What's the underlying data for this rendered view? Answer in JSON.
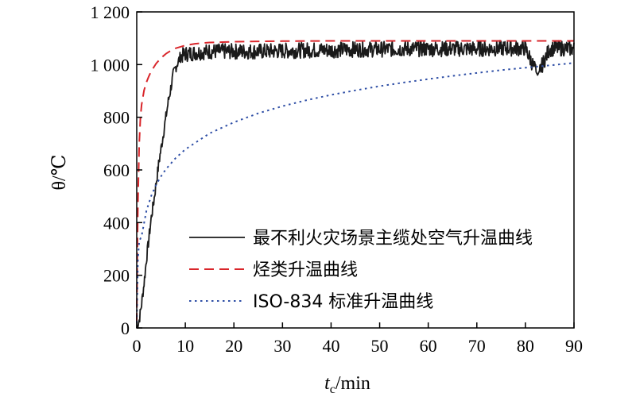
{
  "chart_data": {
    "type": "line",
    "xlabel": "t_c/min",
    "xlabel_main": "t",
    "xlabel_sub": "c",
    "xlabel_unit": "/min",
    "ylabel": "θ/℃",
    "xlim": [
      0,
      90
    ],
    "ylim": [
      0,
      1200
    ],
    "xticks": [
      0,
      10,
      20,
      30,
      40,
      50,
      60,
      70,
      80,
      90
    ],
    "yticks": [
      0,
      200,
      400,
      600,
      800,
      1000,
      1200
    ],
    "xtick_labels": [
      "0",
      "10",
      "20",
      "30",
      "40",
      "50",
      "60",
      "70",
      "80",
      "90"
    ],
    "ytick_labels": [
      "0",
      "200",
      "400",
      "600",
      "800",
      "1 000",
      "1 200"
    ],
    "grid": false,
    "legend_position": "lower-right",
    "series": [
      {
        "name": "最不利火灾场景主缆处空气升温曲线",
        "color": "#1a1a1a",
        "style": "solid",
        "x": [
          0,
          0.5,
          1,
          1.5,
          2,
          2.5,
          3,
          3.5,
          4,
          4.5,
          5,
          5.5,
          6,
          6.5,
          7,
          7.5,
          8,
          8.5,
          9,
          10,
          12,
          15,
          20,
          25,
          30,
          35,
          40,
          45,
          50,
          55,
          60,
          65,
          70,
          75,
          80,
          82.5,
          85,
          88,
          90
        ],
        "y": [
          0,
          30,
          90,
          170,
          260,
          340,
          420,
          480,
          550,
          620,
          680,
          740,
          800,
          860,
          910,
          960,
          990,
          1010,
          1030,
          1040,
          1045,
          1050,
          1050,
          1050,
          1052,
          1055,
          1055,
          1058,
          1058,
          1060,
          1060,
          1060,
          1060,
          1062,
          1062,
          960,
          1060,
          1062,
          1060
        ]
      },
      {
        "name": "烃类升温曲线",
        "color": "#d9262b",
        "style": "dashed",
        "x": [
          0,
          0.1,
          0.25,
          0.5,
          0.75,
          1,
          1.5,
          2,
          2.5,
          3,
          4,
          5,
          6,
          7,
          8,
          10,
          12,
          15,
          20,
          25,
          30,
          40,
          50,
          60,
          70,
          80,
          90
        ],
        "y": [
          20,
          251,
          474,
          698,
          796,
          847,
          902,
          933,
          956,
          975,
          1004,
          1025,
          1041,
          1053,
          1062,
          1073,
          1079,
          1084,
          1087,
          1088,
          1089,
          1090,
          1090,
          1090,
          1090,
          1090,
          1090
        ]
      },
      {
        "name": "ISO-834 标准升温曲线",
        "color": "#2f4fa6",
        "style": "dotted",
        "x": [
          0,
          0.25,
          0.5,
          1,
          2,
          3,
          4,
          5,
          6,
          8,
          10,
          15,
          20,
          25,
          30,
          35,
          40,
          45,
          50,
          55,
          60,
          65,
          70,
          75,
          80,
          85,
          90
        ],
        "y": [
          20,
          263,
          329,
          349,
          445,
          502,
          544,
          576,
          603,
          645,
          678,
          739,
          781,
          815,
          842,
          865,
          885,
          902,
          918,
          932,
          945,
          957,
          968,
          979,
          988,
          997,
          1006
        ]
      }
    ]
  }
}
